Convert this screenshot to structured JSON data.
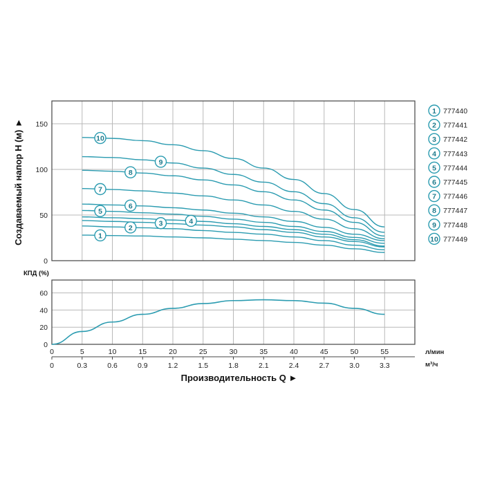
{
  "chart_data": [
    {
      "type": "line",
      "ylabel": "Создаваемый напор H (м) ►",
      "xlabel": "Производительность Q ►",
      "x_unit_primary": "л/мин",
      "x_unit_secondary": "м³/ч",
      "x_ticks_primary": [
        "0",
        "5",
        "10",
        "15",
        "20",
        "25",
        "30",
        "35",
        "40",
        "45",
        "50",
        "55"
      ],
      "x_ticks_secondary": [
        "0",
        "0.3",
        "0.6",
        "0.9",
        "1.2",
        "1.5",
        "1.8",
        "2.1",
        "2.4",
        "2.7",
        "3.0",
        "3.3"
      ],
      "xlim": [
        0,
        60
      ],
      "ylim": [
        0,
        175
      ],
      "y_ticks": [
        "0",
        "50",
        "100",
        "150"
      ],
      "grid": true,
      "x": [
        5,
        10,
        15,
        20,
        25,
        30,
        35,
        40,
        45,
        50,
        55
      ],
      "series": [
        {
          "name": "777440",
          "label": "1",
          "values": [
            28,
            27.5,
            27,
            26,
            25,
            23.5,
            22,
            20,
            17,
            13,
            9
          ]
        },
        {
          "name": "777441",
          "label": "2",
          "values": [
            38,
            37,
            36,
            35,
            33,
            31,
            29,
            26,
            22,
            17,
            12
          ]
        },
        {
          "name": "777442",
          "label": "3",
          "values": [
            44,
            43,
            42,
            40.5,
            39,
            37,
            34,
            31,
            26,
            21,
            15
          ]
        },
        {
          "name": "777443",
          "label": "4",
          "values": [
            48,
            47,
            46,
            44.5,
            43,
            40.5,
            37.5,
            34,
            29,
            23,
            16
          ]
        },
        {
          "name": "777444",
          "label": "5",
          "values": [
            55,
            54,
            52.5,
            51,
            48.5,
            45.5,
            42,
            37.5,
            32,
            25.5,
            19
          ]
        },
        {
          "name": "777445",
          "label": "6",
          "values": [
            62,
            61,
            60,
            58,
            55.5,
            52,
            48,
            43,
            36.5,
            29,
            22
          ]
        },
        {
          "name": "777446",
          "label": "7",
          "values": [
            79,
            78,
            76.5,
            74,
            71,
            66.5,
            61,
            54,
            45.5,
            35,
            24
          ]
        },
        {
          "name": "777447",
          "label": "8",
          "values": [
            99,
            98,
            96,
            93,
            88.5,
            83,
            75.5,
            66.5,
            55.5,
            42,
            27
          ]
        },
        {
          "name": "777448",
          "label": "9",
          "values": [
            114,
            113,
            110.5,
            107,
            101.5,
            94.5,
            86,
            75.5,
            62.5,
            47,
            31
          ]
        },
        {
          "name": "777449",
          "label": "10",
          "values": [
            135,
            134,
            131.5,
            127,
            120.5,
            112,
            101.5,
            89,
            73.5,
            56,
            37
          ]
        }
      ],
      "color": "#2a9bb0"
    },
    {
      "type": "line",
      "ylabel": "КПД (%)",
      "xlim": [
        0,
        60
      ],
      "ylim": [
        0,
        75
      ],
      "y_ticks": [
        "0",
        "20",
        "40",
        "60"
      ],
      "grid": true,
      "x": [
        0,
        5,
        10,
        15,
        20,
        25,
        30,
        35,
        40,
        45,
        50,
        55
      ],
      "series": [
        {
          "values": [
            0,
            15,
            26,
            35,
            42,
            47.5,
            51,
            52,
            51,
            48,
            42,
            35
          ]
        }
      ],
      "color": "#2a9bb0"
    }
  ],
  "legend": [
    {
      "num": "1",
      "code": "777440"
    },
    {
      "num": "2",
      "code": "777441"
    },
    {
      "num": "3",
      "code": "777442"
    },
    {
      "num": "4",
      "code": "777443"
    },
    {
      "num": "5",
      "code": "777444"
    },
    {
      "num": "6",
      "code": "777445"
    },
    {
      "num": "7",
      "code": "777446"
    },
    {
      "num": "8",
      "code": "777447"
    },
    {
      "num": "9",
      "code": "777448"
    },
    {
      "num": "10",
      "code": "777449"
    }
  ]
}
